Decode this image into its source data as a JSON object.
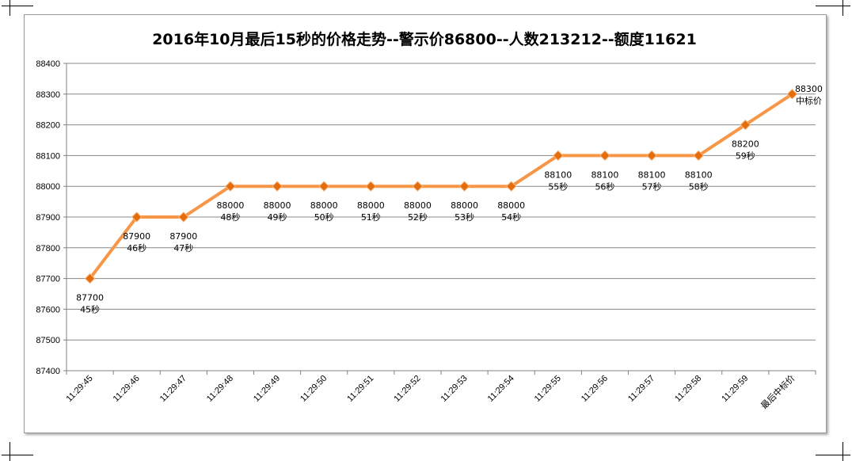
{
  "chart_data": {
    "type": "line",
    "title": "2016年10月最后15秒的价格走势--警示价86800--人数213212--额度11621",
    "xlabel": "",
    "ylabel": "",
    "ylim": [
      87400,
      88400
    ],
    "yticks": [
      87400,
      87500,
      87600,
      87700,
      87800,
      87900,
      88000,
      88100,
      88200,
      88300,
      88400
    ],
    "categories": [
      "11:29:45",
      "11:29:46",
      "11:29:47",
      "11:29:48",
      "11:29:49",
      "11:29:50",
      "11:29:51",
      "11:29:52",
      "11:29:53",
      "11:29:54",
      "11:29:55",
      "11:29:56",
      "11:29:57",
      "11:29:58",
      "11:29:59",
      "最后中标价"
    ],
    "series": [
      {
        "values": [
          87700,
          87900,
          87900,
          88000,
          88000,
          88000,
          88000,
          88000,
          88000,
          88000,
          88100,
          88100,
          88100,
          88100,
          88200,
          88300
        ],
        "labels": [
          [
            "87700",
            "45秒"
          ],
          [
            "87900",
            "46秒"
          ],
          [
            "87900",
            "47秒"
          ],
          [
            "88000",
            "48秒"
          ],
          [
            "88000",
            "49秒"
          ],
          [
            "88000",
            "50秒"
          ],
          [
            "88000",
            "51秒"
          ],
          [
            "88000",
            "52秒"
          ],
          [
            "88000",
            "53秒"
          ],
          [
            "88000",
            "54秒"
          ],
          [
            "88100",
            "55秒"
          ],
          [
            "88100",
            "56秒"
          ],
          [
            "88100",
            "57秒"
          ],
          [
            "88100",
            "58秒"
          ],
          [
            "88200",
            "59秒"
          ],
          [
            "88300",
            "中标价"
          ]
        ]
      }
    ],
    "grid": true,
    "legend": "none",
    "line_color": "#f79646",
    "marker_color": "#e46c0a"
  }
}
